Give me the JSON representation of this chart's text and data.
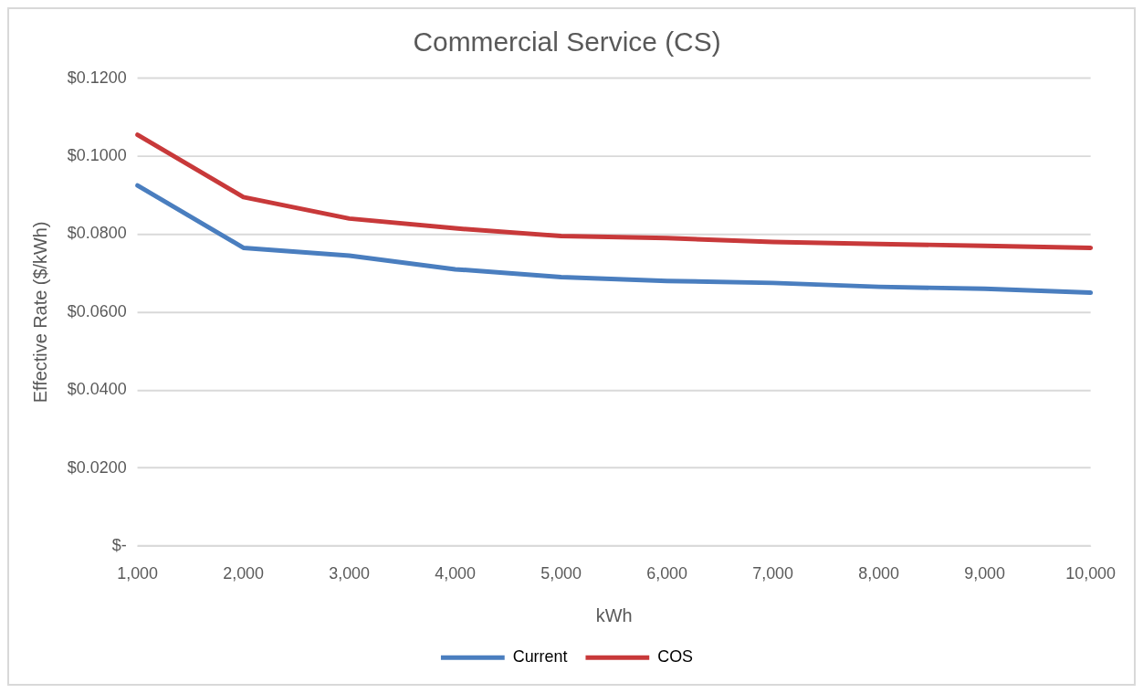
{
  "chart_data": {
    "type": "line",
    "title": "Commercial Service (CS)",
    "xlabel": "kWh",
    "ylabel": "Effective Rate ($/kWh)",
    "categories": [
      "1,000",
      "2,000",
      "3,000",
      "4,000",
      "5,000",
      "6,000",
      "7,000",
      "8,000",
      "9,000",
      "10,000"
    ],
    "series": [
      {
        "name": "Current",
        "color": "#4a7ebf",
        "values": [
          0.0925,
          0.0765,
          0.0745,
          0.071,
          0.069,
          0.068,
          0.0675,
          0.0665,
          0.066,
          0.065
        ]
      },
      {
        "name": "COS",
        "color": "#c8393a",
        "values": [
          0.1055,
          0.0895,
          0.084,
          0.0815,
          0.0795,
          0.079,
          0.078,
          0.0775,
          0.077,
          0.0765
        ]
      }
    ],
    "ylim": [
      0,
      0.12
    ],
    "yticks": [
      {
        "value": 0,
        "label": "$-"
      },
      {
        "value": 0.02,
        "label": "$0.0200"
      },
      {
        "value": 0.04,
        "label": "$0.0400"
      },
      {
        "value": 0.06,
        "label": "$0.0600"
      },
      {
        "value": 0.08,
        "label": "$0.0800"
      },
      {
        "value": 0.1,
        "label": "$0.1000"
      },
      {
        "value": 0.12,
        "label": "$0.1200"
      }
    ],
    "grid": "y",
    "legend": "bottom",
    "marker": "none",
    "line_style": "solid"
  }
}
